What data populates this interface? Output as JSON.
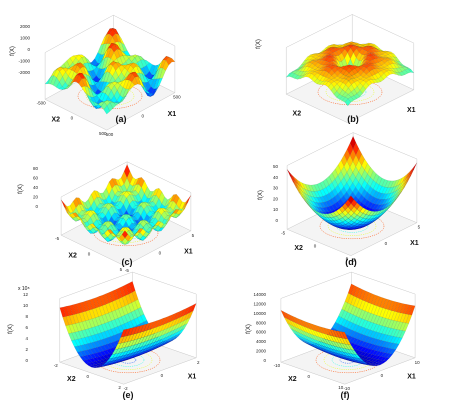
{
  "colors": {
    "colormap": "jet",
    "background": "#ffffff",
    "axis": "#111111",
    "grid": "#c9c9c9"
  },
  "chart_data": [
    {
      "panel": "(a)",
      "type": "surface3d",
      "function_shape": "rastrigin-like oscillating surface",
      "xlabel": "X1",
      "ylabel": "X2",
      "zlabel": "f(X)",
      "z_ticks": [
        "2000",
        "1000",
        "0",
        "-1000",
        "-2000"
      ],
      "x_ticks": [
        "-500",
        "0",
        "500"
      ],
      "y_ticks": [
        "-500",
        "0",
        "500"
      ],
      "contour_on_floor": true,
      "grid": true
    },
    {
      "panel": "(b)",
      "type": "surface3d",
      "function_shape": "inverted bowl with central spike",
      "xlabel": "X1",
      "ylabel": "X2",
      "zlabel": "f(X)",
      "z_ticks": [
        "",
        "",
        "",
        ""
      ],
      "x_ticks": [],
      "y_ticks": [],
      "contour_on_floor": true,
      "grid": true
    },
    {
      "panel": "(c)",
      "type": "surface3d",
      "function_shape": "oscillating egg-crate surface",
      "xlabel": "X1",
      "ylabel": "X2",
      "zlabel": "f(X)",
      "z_ticks": [
        "80",
        "60",
        "40",
        "20",
        "0"
      ],
      "x_ticks": [
        "-5",
        "0",
        "5"
      ],
      "y_ticks": [
        "-5",
        "0",
        "5"
      ],
      "contour_on_floor": true,
      "grid": true
    },
    {
      "panel": "(d)",
      "type": "surface3d",
      "function_shape": "convex bowl (sphere)",
      "xlabel": "X1",
      "ylabel": "X2",
      "zlabel": "f(X)",
      "z_ticks": [
        "50",
        "40",
        "30",
        "20",
        "10",
        "0"
      ],
      "x_ticks": [
        "-5",
        "0",
        "5"
      ],
      "y_ticks": [
        "-5",
        "0",
        "5"
      ],
      "contour_on_floor": true,
      "grid": true
    },
    {
      "panel": "(e)",
      "type": "surface3d",
      "function_shape": "parabolic valley",
      "xlabel": "X1",
      "ylabel": "X2",
      "zlabel": "f(X)",
      "z_exponent": "x 10⁸",
      "z_ticks": [
        "12",
        "10",
        "8",
        "6",
        "4",
        "2",
        "0"
      ],
      "x_ticks": [
        "-2",
        "0",
        "2"
      ],
      "y_ticks": [
        "-2",
        "0",
        "2"
      ],
      "contour_on_floor": true,
      "grid": true
    },
    {
      "panel": "(f)",
      "type": "surface3d",
      "function_shape": "parabolic valley",
      "xlabel": "X1",
      "ylabel": "X2",
      "zlabel": "f(X)",
      "z_ticks": [
        "14000",
        "12000",
        "10000",
        "8000",
        "6000",
        "4000",
        "2000",
        "0"
      ],
      "x_ticks": [
        "-10",
        "0",
        "10"
      ],
      "y_ticks": [
        "-10",
        "0",
        "10"
      ],
      "contour_on_floor": true,
      "grid": true
    }
  ]
}
